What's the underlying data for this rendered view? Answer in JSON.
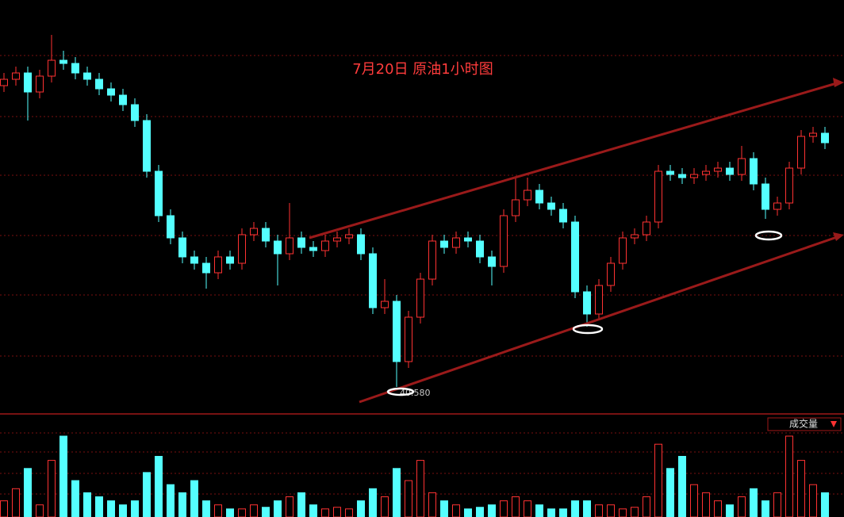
{
  "chart_data": {
    "type": "candlestick",
    "title": "7月20日 原油1小时图",
    "ylim": [
      40.5,
      41.8
    ],
    "up_color": "#ff3232",
    "down_color": "#54ffff",
    "annotations": [
      {
        "text": "40.580",
        "value": 40.58
      }
    ],
    "series": {
      "open": [
        41.53,
        41.55,
        41.57,
        41.51,
        41.56,
        41.61,
        41.6,
        41.57,
        41.55,
        41.52,
        41.5,
        41.47,
        41.42,
        41.26,
        41.12,
        41.05,
        40.99,
        40.97,
        40.94,
        40.99,
        40.97,
        41.06,
        41.08,
        41.04,
        41.0,
        41.05,
        41.02,
        41.01,
        41.04,
        41.05,
        41.06,
        41.0,
        40.83,
        40.85,
        40.66,
        40.8,
        40.92,
        41.04,
        41.02,
        41.05,
        41.04,
        40.99,
        40.96,
        41.12,
        41.17,
        41.2,
        41.16,
        41.14,
        41.1,
        40.88,
        40.81,
        40.9,
        40.97,
        41.05,
        41.06,
        41.1,
        41.26,
        41.25,
        41.24,
        41.25,
        41.26,
        41.27,
        41.25,
        41.3,
        41.22,
        41.14,
        41.16,
        41.27,
        41.37,
        41.38
      ],
      "high": [
        41.57,
        41.59,
        41.59,
        41.58,
        41.69,
        41.64,
        41.62,
        41.59,
        41.57,
        41.54,
        41.52,
        41.49,
        41.44,
        41.28,
        41.14,
        41.07,
        41.01,
        40.99,
        41.01,
        41.01,
        41.08,
        41.1,
        41.1,
        41.06,
        41.16,
        41.07,
        41.04,
        41.06,
        41.07,
        41.08,
        41.08,
        41.02,
        40.92,
        40.87,
        40.82,
        40.94,
        41.06,
        41.06,
        41.07,
        41.07,
        41.06,
        41.01,
        41.14,
        41.24,
        41.24,
        41.22,
        41.18,
        41.16,
        41.12,
        40.9,
        40.92,
        40.99,
        41.07,
        41.08,
        41.12,
        41.28,
        41.28,
        41.27,
        41.27,
        41.28,
        41.29,
        41.29,
        41.34,
        41.32,
        41.24,
        41.18,
        41.29,
        41.39,
        41.4,
        41.4
      ],
      "low": [
        41.51,
        41.53,
        41.42,
        41.49,
        41.54,
        41.58,
        41.55,
        41.53,
        41.5,
        41.48,
        41.45,
        41.4,
        41.24,
        41.1,
        41.03,
        40.97,
        40.95,
        40.89,
        40.92,
        40.95,
        40.95,
        41.04,
        41.02,
        40.9,
        40.98,
        41.0,
        40.99,
        40.99,
        41.02,
        41.03,
        40.98,
        40.81,
        40.81,
        40.58,
        40.64,
        40.78,
        40.9,
        41.0,
        41.0,
        41.02,
        40.97,
        40.9,
        40.94,
        41.1,
        41.15,
        41.14,
        41.12,
        41.08,
        40.86,
        40.77,
        40.79,
        40.88,
        40.95,
        41.03,
        41.04,
        41.08,
        41.23,
        41.22,
        41.22,
        41.23,
        41.24,
        41.23,
        41.23,
        41.2,
        41.11,
        41.12,
        41.14,
        41.25,
        41.35,
        41.33
      ],
      "close": [
        41.55,
        41.57,
        41.51,
        41.56,
        41.61,
        41.6,
        41.57,
        41.55,
        41.52,
        41.5,
        41.47,
        41.42,
        41.26,
        41.12,
        41.05,
        40.99,
        40.97,
        40.94,
        40.99,
        40.97,
        41.06,
        41.08,
        41.04,
        41.0,
        41.05,
        41.02,
        41.01,
        41.04,
        41.05,
        41.06,
        41.0,
        40.83,
        40.85,
        40.66,
        40.8,
        40.92,
        41.04,
        41.02,
        41.05,
        41.04,
        40.99,
        40.96,
        41.12,
        41.17,
        41.2,
        41.16,
        41.14,
        41.1,
        40.88,
        40.81,
        40.9,
        40.97,
        41.05,
        41.06,
        41.1,
        41.26,
        41.25,
        41.24,
        41.25,
        41.26,
        41.27,
        41.25,
        41.3,
        41.22,
        41.14,
        41.16,
        41.27,
        41.37,
        41.38,
        41.35
      ]
    },
    "volume": {
      "label": "成交量",
      "ylim": [
        0,
        100
      ],
      "values": [
        20,
        35,
        60,
        15,
        70,
        100,
        45,
        30,
        25,
        20,
        15,
        20,
        55,
        75,
        40,
        30,
        45,
        20,
        15,
        10,
        10,
        15,
        12,
        20,
        25,
        30,
        15,
        10,
        12,
        10,
        20,
        35,
        25,
        60,
        45,
        70,
        30,
        20,
        15,
        10,
        12,
        15,
        20,
        25,
        20,
        15,
        10,
        10,
        20,
        20,
        15,
        15,
        10,
        12,
        25,
        90,
        60,
        75,
        40,
        30,
        20,
        15,
        25,
        35,
        20,
        30,
        100,
        70,
        40,
        30
      ]
    }
  }
}
